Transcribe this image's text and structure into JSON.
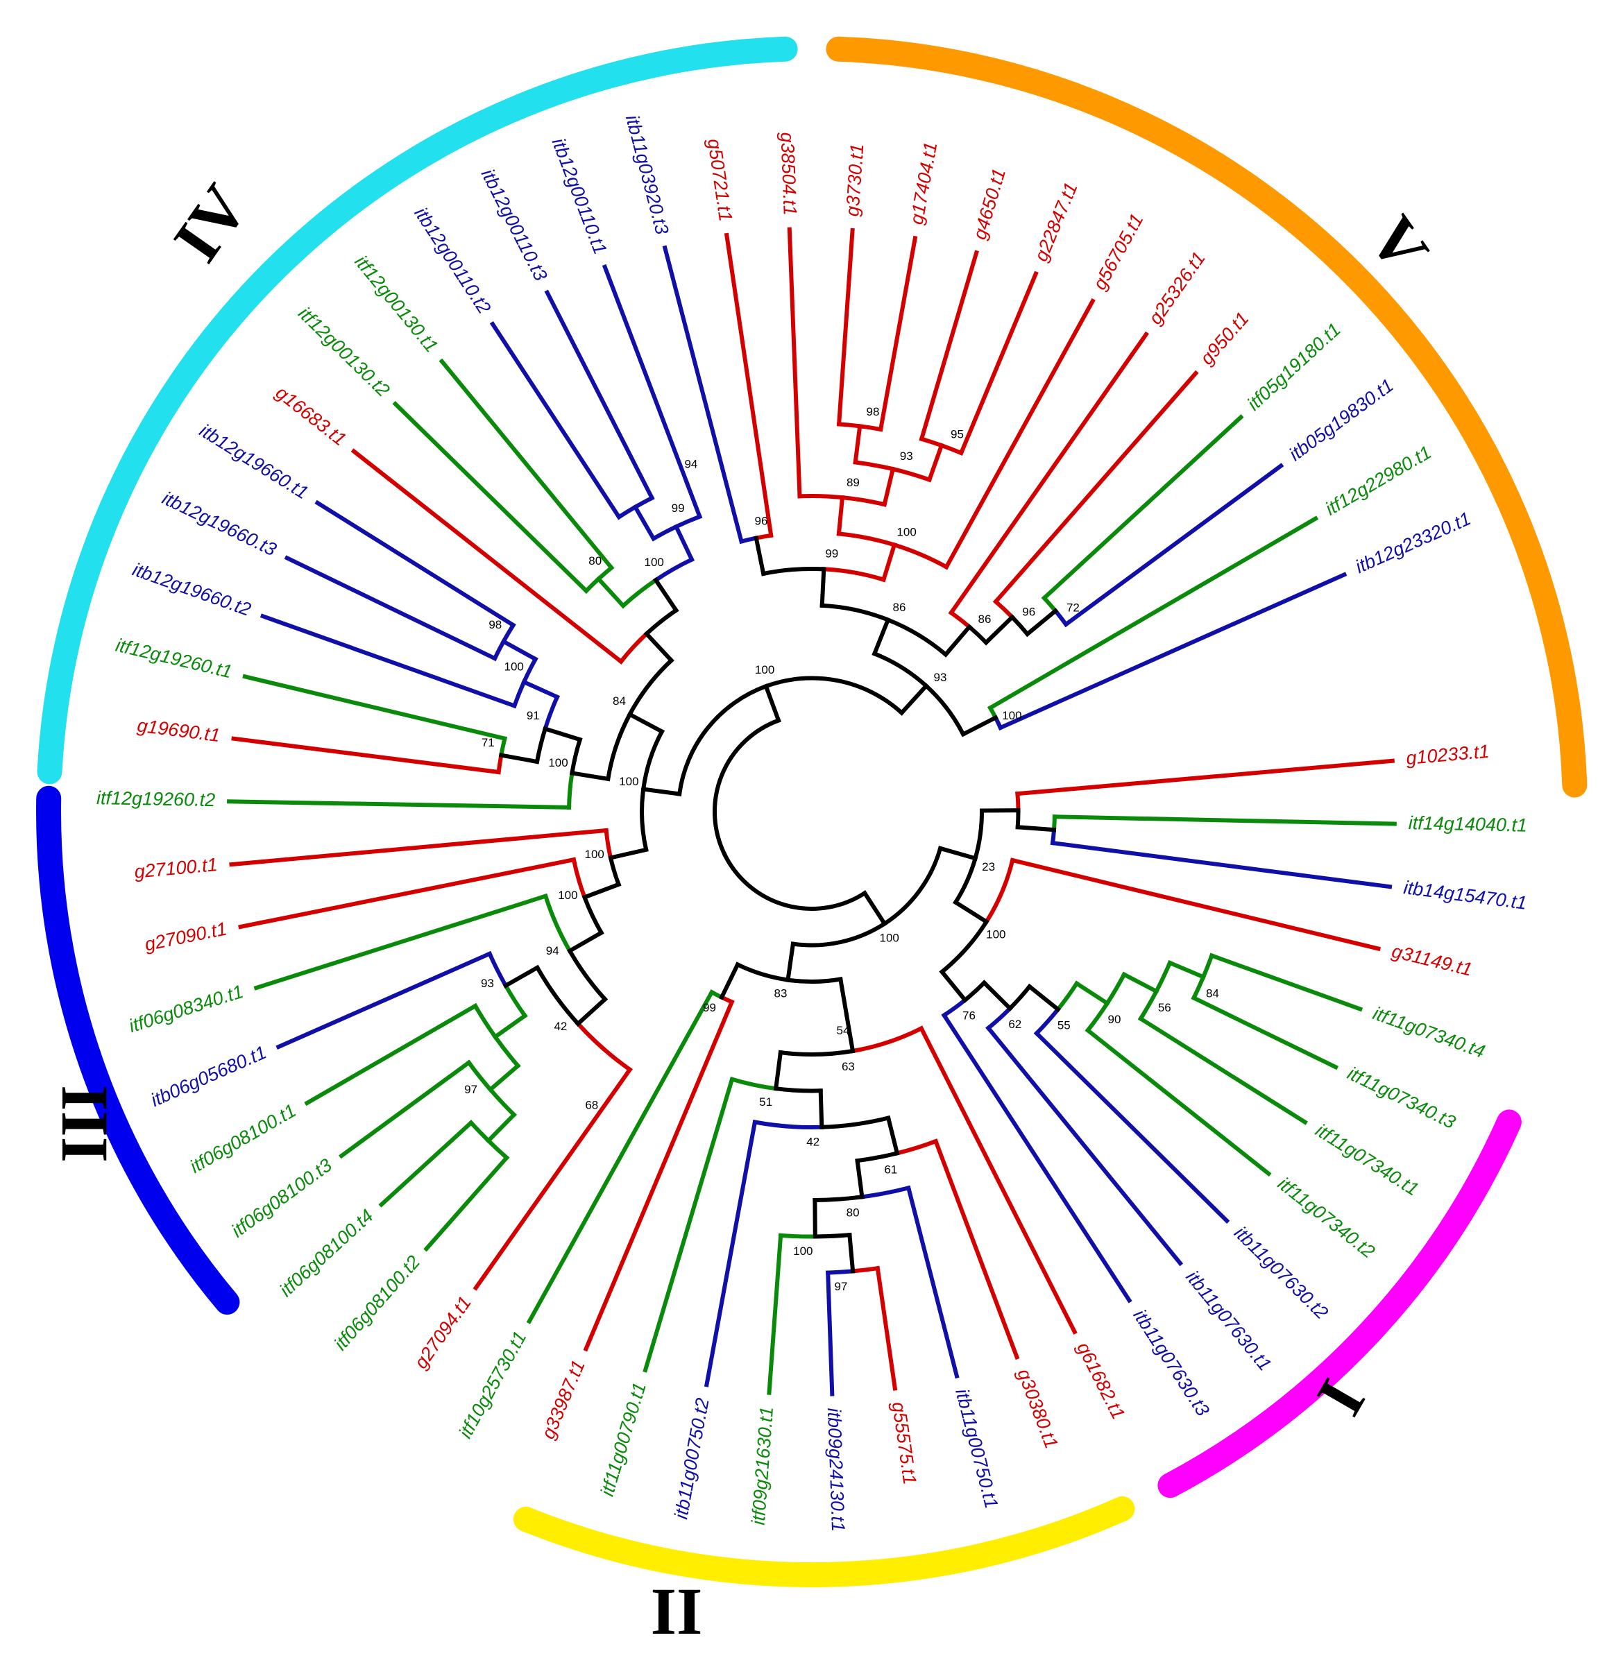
{
  "colors": {
    "red": "#d40000",
    "green": "#0a8a0a",
    "blue": "#1010a8",
    "black": "#000000",
    "cladeI": "#ff00ff",
    "cladeII": "#ffee00",
    "cladeIII": "#0000ee",
    "cladeIV": "#22e0ee",
    "cladeV": "#ff9900"
  },
  "clades": [
    {
      "id": "I",
      "label": "I",
      "color": "#ff00ff"
    },
    {
      "id": "II",
      "label": "II",
      "color": "#ffee00"
    },
    {
      "id": "III",
      "label": "III",
      "color": "#0000ee"
    },
    {
      "id": "IV",
      "label": "IV",
      "color": "#22e0ee"
    },
    {
      "id": "V",
      "label": "V",
      "color": "#ff9900"
    }
  ],
  "leaves": [
    {
      "name": "g10233.t1",
      "color": "red"
    },
    {
      "name": "itf14g14040.t1",
      "color": "green"
    },
    {
      "name": "itb14g15470.t1",
      "color": "blue"
    },
    {
      "name": "g31149.t1",
      "color": "red"
    },
    {
      "name": "itf11g07340.t4",
      "color": "green"
    },
    {
      "name": "itf11g07340.t3",
      "color": "green"
    },
    {
      "name": "itf11g07340.t1",
      "color": "green"
    },
    {
      "name": "itf11g07340.t2",
      "color": "green"
    },
    {
      "name": "itb11g07630.t2",
      "color": "blue"
    },
    {
      "name": "itb11g07630.t1",
      "color": "blue"
    },
    {
      "name": "itb11g07630.t3",
      "color": "blue"
    },
    {
      "name": "g61682.t1",
      "color": "red"
    },
    {
      "name": "g30380.t1",
      "color": "red"
    },
    {
      "name": "itb11g00750.t1",
      "color": "blue"
    },
    {
      "name": "g55575.t1",
      "color": "red"
    },
    {
      "name": "itb09g24130.t1",
      "color": "blue"
    },
    {
      "name": "itf09g21630.t1",
      "color": "green"
    },
    {
      "name": "itb11g00750.t2",
      "color": "blue"
    },
    {
      "name": "itf11g00790.t1",
      "color": "green"
    },
    {
      "name": "g33987.t1",
      "color": "red"
    },
    {
      "name": "itf10g25730.t1",
      "color": "green"
    },
    {
      "name": "g27094.t1",
      "color": "red"
    },
    {
      "name": "itf06g08100.t2",
      "color": "green"
    },
    {
      "name": "itf06g08100.t4",
      "color": "green"
    },
    {
      "name": "itf06g08100.t3",
      "color": "green"
    },
    {
      "name": "itf06g08100.t1",
      "color": "green"
    },
    {
      "name": "itb06g05680.t1",
      "color": "blue"
    },
    {
      "name": "itf06g08340.t1",
      "color": "green"
    },
    {
      "name": "g27090.t1",
      "color": "red"
    },
    {
      "name": "g27100.t1",
      "color": "red"
    },
    {
      "name": "itf12g19260.t2",
      "color": "green"
    },
    {
      "name": "g19690.t1",
      "color": "red"
    },
    {
      "name": "itf12g19260.t1",
      "color": "green"
    },
    {
      "name": "itb12g19660.t2",
      "color": "blue"
    },
    {
      "name": "itb12g19660.t3",
      "color": "blue"
    },
    {
      "name": "itb12g19660.t1",
      "color": "blue"
    },
    {
      "name": "g16683.t1",
      "color": "red"
    },
    {
      "name": "itf12g00130.t2",
      "color": "green"
    },
    {
      "name": "itf12g00130.t1",
      "color": "green"
    },
    {
      "name": "itb12g00110.t2",
      "color": "blue"
    },
    {
      "name": "itb12g00110.t3",
      "color": "blue"
    },
    {
      "name": "itb12g00110.t1",
      "color": "blue"
    },
    {
      "name": "itb11g03920.t3",
      "color": "blue"
    },
    {
      "name": "g50721.t1",
      "color": "red"
    },
    {
      "name": "g38504.t1",
      "color": "red"
    },
    {
      "name": "g3730.t1",
      "color": "red"
    },
    {
      "name": "g17404.t1",
      "color": "red"
    },
    {
      "name": "g4650.t1",
      "color": "red"
    },
    {
      "name": "g22847.t1",
      "color": "red"
    },
    {
      "name": "g56705.t1",
      "color": "red"
    },
    {
      "name": "g25326.t1",
      "color": "red"
    },
    {
      "name": "g950.t1",
      "color": "red"
    },
    {
      "name": "itf05g19180.t1",
      "color": "green"
    },
    {
      "name": "itb05g19830.t1",
      "color": "blue"
    },
    {
      "name": "itf12g22980.t1",
      "color": "green"
    },
    {
      "name": "itb12g23320.t1",
      "color": "blue"
    }
  ],
  "tree": {
    "c": [
      {
        "support": "100",
        "c": [
          {
            "support": "100",
            "c": [
              {
                "support": "100",
                "c": [
                  {
                    "support": "100",
                    "c": [
                      {
                        "l": 28
                      },
                      {
                        "support": "94",
                        "c": [
                          {
                            "l": 27
                          },
                          {
                            "support": "42",
                            "c": [
                              {
                                "support": "93",
                                "c": [
                                  {
                                    "l": 26
                                  },
                                  {
                                    "c": [
                                      {
                                        "l": 25
                                      },
                                      {
                                        "support": "97",
                                        "c": [
                                          {
                                            "l": 24
                                          },
                                          {
                                            "c": [
                                              {
                                                "l": 23
                                              },
                                              {
                                                "l": 22
                                              }
                                            ]
                                          }
                                        ]
                                      }
                                    ]
                                  }
                                ]
                              },
                              {
                                "support": "68",
                                "c": [
                                  {
                                    "l": 21
                                  }
                                ]
                              }
                            ]
                          }
                        ]
                      }
                    ]
                  },
                  {
                    "l": 29
                  }
                ]
              },
              {
                "support": "84",
                "c": [
                  {
                    "support": "100",
                    "c": [
                      {
                        "l": 30
                      },
                      {
                        "support": "91",
                        "c": [
                          {
                            "support": "71",
                            "c": [
                              {
                                "l": 31
                              },
                              {
                                "l": 32
                              }
                            ]
                          },
                          {
                            "support": "100",
                            "c": [
                              {
                                "l": 33
                              },
                              {
                                "support": "98",
                                "c": [
                                  {
                                    "l": 34
                                  },
                                  {
                                    "l": 35
                                  }
                                ]
                              }
                            ]
                          }
                        ]
                      }
                    ]
                  },
                  {
                    "c": [
                      {
                        "l": 36
                      },
                      {
                        "support": "100",
                        "c": [
                          {
                            "support": "80",
                            "c": [
                              {
                                "l": 37
                              },
                              {
                                "l": 38
                              }
                            ]
                          },
                          {
                            "support": "99",
                            "c": [
                              {
                                "c": [
                                  {
                                    "l": 39
                                  },
                                  {
                                    "l": 40
                                  }
                                ]
                              },
                              {
                                "support": "94",
                                "c": [
                                  {
                                    "l": 41
                                  }
                                ]
                              }
                            ]
                          }
                        ]
                      }
                    ]
                  }
                ]
              }
            ]
          },
          {
            "support": "93",
            "c": [
              {
                "support": "86",
                "c": [
                  {
                    "support": "99",
                    "c": [
                      {
                        "support": "96",
                        "c": [
                          {
                            "l": 42
                          },
                          {
                            "l": 43
                          }
                        ]
                      },
                      {
                        "support": "100",
                        "c": [
                          {
                            "support": "89",
                            "c": [
                              {
                                "l": 44
                              },
                              {
                                "support": "93",
                                "c": [
                                  {
                                    "support": "98",
                                    "c": [
                                      {
                                        "l": 45
                                      },
                                      {
                                        "l": 46
                                      }
                                    ]
                                  },
                                  {
                                    "support": "95",
                                    "c": [
                                      {
                                        "l": 47
                                      },
                                      {
                                        "l": 48
                                      }
                                    ]
                                  }
                                ]
                              }
                            ]
                          },
                          {
                            "l": 49
                          }
                        ]
                      }
                    ]
                  },
                  {
                    "support": "86",
                    "c": [
                      {
                        "l": 50
                      },
                      {
                        "support": "96",
                        "c": [
                          {
                            "l": 51
                          },
                          {
                            "support": "72",
                            "c": [
                              {
                                "l": 52
                              },
                              {
                                "l": 53
                              }
                            ]
                          }
                        ]
                      }
                    ]
                  }
                ]
              },
              {
                "support": "100",
                "c": [
                  {
                    "l": 54
                  },
                  {
                    "l": 55
                  }
                ]
              }
            ]
          }
        ]
      },
      {
        "support": "100",
        "c": [
          {
            "support": "83",
            "c": [
              {
                "support": "54",
                "c": [
                  {
                    "support": "63",
                    "c": [
                      {
                        "support": "51",
                        "c": [
                          {
                            "l": 18
                          },
                          {
                            "support": "42",
                            "c": [
                              {
                                "l": 17
                              },
                              {
                                "support": "61",
                                "c": [
                                  {
                                    "support": "80",
                                    "c": [
                                      {
                                        "support": "100",
                                        "c": [
                                          {
                                            "l": 16
                                          },
                                          {
                                            "support": "97",
                                            "c": [
                                              {
                                                "l": 15
                                              },
                                              {
                                                "l": 14
                                              }
                                            ]
                                          }
                                        ]
                                      },
                                      {
                                        "l": 13
                                      }
                                    ]
                                  },
                                  {
                                    "l": 12
                                  }
                                ]
                              }
                            ]
                          }
                        ]
                      },
                      {
                        "l": 11
                      }
                    ]
                  }
                ]
              },
              {
                "support": "99",
                "c": [
                  {
                    "l": 20
                  },
                  {
                    "l": 19
                  }
                ]
              }
            ]
          },
          {
            "support": "23",
            "c": [
              {
                "c": [
                  {
                    "l": 0
                  },
                  {
                    "c": [
                      {
                        "l": 1
                      },
                      {
                        "l": 2
                      }
                    ]
                  }
                ]
              },
              {
                "support": "100",
                "c": [
                  {
                    "l": 3
                  },
                  {
                    "support": "76",
                    "c": [
                      {
                        "l": 10
                      },
                      {
                        "support": "62",
                        "c": [
                          {
                            "l": 9
                          },
                          {
                            "support": "55",
                            "c": [
                              {
                                "l": 8
                              },
                              {
                                "support": "90",
                                "c": [
                                  {
                                    "l": 7
                                  },
                                  {
                                    "support": "56",
                                    "c": [
                                      {
                                        "l": 6
                                      },
                                      {
                                        "support": "84",
                                        "c": [
                                          {
                                            "l": 5
                                          },
                                          {
                                            "l": 4
                                          }
                                        ]
                                      }
                                    ]
                                  }
                                ]
                              }
                            ]
                          }
                        ]
                      }
                    ]
                  }
                ]
              }
            ]
          }
        ]
      }
    ]
  }
}
